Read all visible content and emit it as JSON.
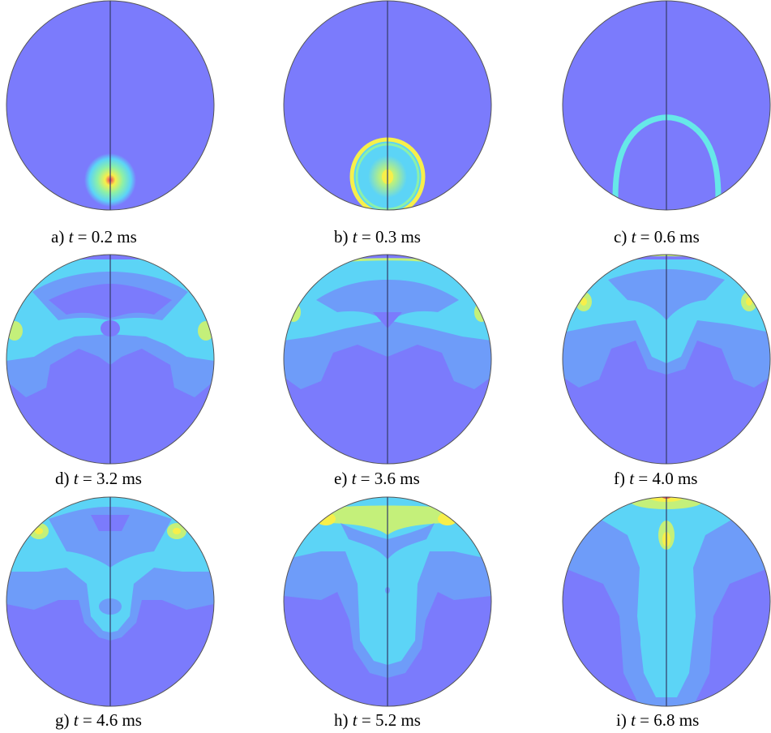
{
  "panels": [
    {
      "letter": "a)",
      "symbol": "t",
      "eq": "=",
      "value": "0.2",
      "unit": "ms"
    },
    {
      "letter": "b)",
      "symbol": "t",
      "eq": "=",
      "value": "0.3",
      "unit": "ms"
    },
    {
      "letter": "c)",
      "symbol": "t",
      "eq": "=",
      "value": "0.6",
      "unit": "ms"
    },
    {
      "letter": "d)",
      "symbol": "t",
      "eq": "=",
      "value": "3.2",
      "unit": "ms"
    },
    {
      "letter": "e)",
      "symbol": "t",
      "eq": "=",
      "value": "3.6",
      "unit": "ms"
    },
    {
      "letter": "f)",
      "symbol": "t",
      "eq": "=",
      "value": "4.0",
      "unit": "ms"
    },
    {
      "letter": "g)",
      "symbol": "t",
      "eq": "=",
      "value": "4.6",
      "unit": "ms"
    },
    {
      "letter": "h)",
      "symbol": "t",
      "eq": "=",
      "value": "5.2",
      "unit": "ms"
    },
    {
      "letter": "i)",
      "symbol": "t",
      "eq": "=",
      "value": "6.8",
      "unit": "ms"
    }
  ],
  "colors": {
    "level0": "#7b7bfc",
    "level1": "#6e9cf9",
    "level2": "#5cd4f6",
    "level3": "#66e8d8",
    "level4": "#c4f07a",
    "level5": "#f7ef4a",
    "level6": "#ee4a4a",
    "axis_line": "#333a66"
  }
}
